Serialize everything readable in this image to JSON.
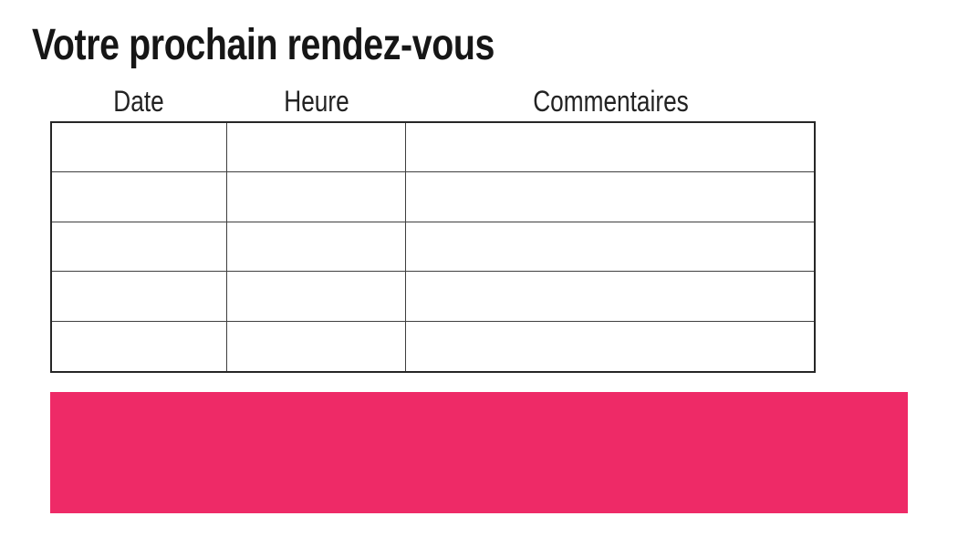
{
  "page": {
    "title": "Votre prochain rendez-vous"
  },
  "table": {
    "columns": [
      {
        "label": "Date"
      },
      {
        "label": "Heure"
      },
      {
        "label": "Commentaires"
      }
    ],
    "rows": [
      [
        "",
        "",
        ""
      ],
      [
        "",
        "",
        ""
      ],
      [
        "",
        "",
        ""
      ],
      [
        "",
        "",
        ""
      ],
      [
        "",
        "",
        ""
      ]
    ]
  },
  "colors": {
    "accent_pink": "#ee2a67",
    "table_border": "#3f3f3f",
    "table_outer_border": "#262626",
    "title_text": "#161616",
    "header_text": "#222222"
  }
}
